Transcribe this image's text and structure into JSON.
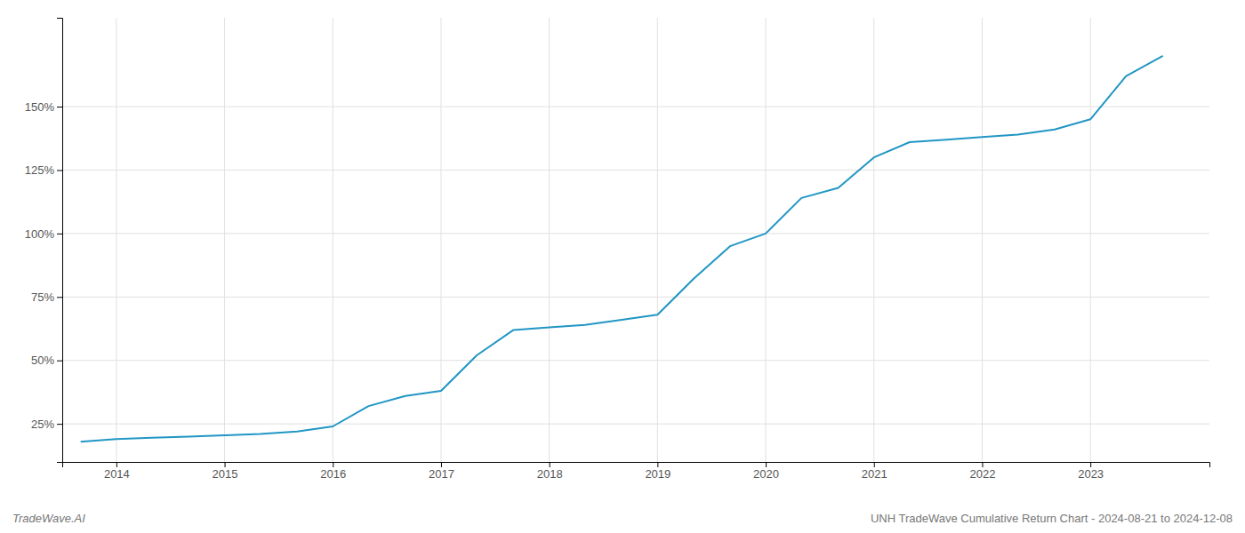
{
  "chart_data": {
    "type": "line",
    "title": "UNH TradeWave Cumulative Return Chart - 2024-08-21 to 2024-12-08",
    "annotations": [
      "TradeWave.AI"
    ],
    "x": [
      2013.67,
      2014.0,
      2014.33,
      2014.67,
      2015.0,
      2015.33,
      2015.67,
      2016.0,
      2016.33,
      2016.67,
      2017.0,
      2017.33,
      2017.67,
      2018.0,
      2018.33,
      2018.67,
      2019.0,
      2019.33,
      2019.67,
      2020.0,
      2020.33,
      2020.67,
      2021.0,
      2021.33,
      2021.67,
      2022.0,
      2022.33,
      2022.67,
      2023.0,
      2023.33,
      2023.67
    ],
    "values": [
      18,
      19,
      19.5,
      20,
      20.5,
      21,
      22,
      24,
      32,
      36,
      38,
      52,
      62,
      63,
      64,
      66,
      68,
      82,
      95,
      100,
      114,
      118,
      130,
      136,
      137,
      138,
      139,
      141,
      145,
      162,
      170
    ],
    "color": "#2196c4",
    "xlim": [
      2013.5,
      2024.1
    ],
    "xticks": [
      2014,
      2015,
      2016,
      2017,
      2018,
      2019,
      2020,
      2021,
      2022,
      2023
    ],
    "ylim": [
      10,
      185
    ],
    "yticks": [
      {
        "value": 25,
        "label": "25%"
      },
      {
        "value": 50,
        "label": "50%"
      },
      {
        "value": 75,
        "label": "75%"
      },
      {
        "value": 100,
        "label": "100%"
      },
      {
        "value": 125,
        "label": "125%"
      },
      {
        "value": 150,
        "label": "150%"
      }
    ],
    "grid": true
  }
}
